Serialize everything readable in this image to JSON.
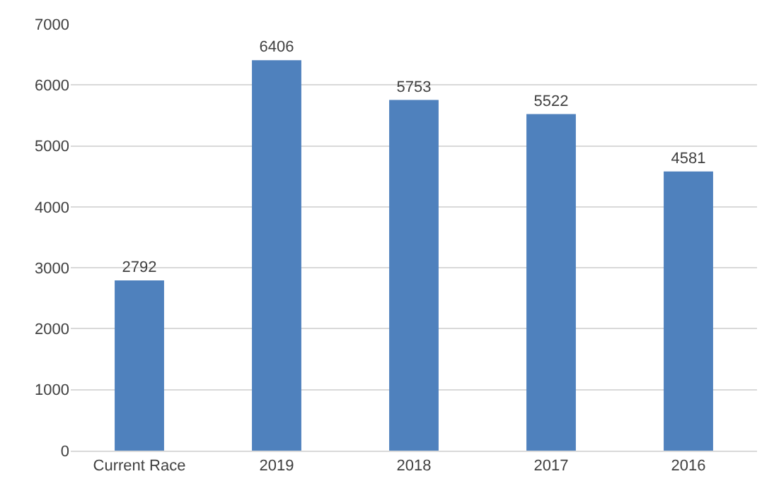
{
  "chart_data": {
    "type": "bar",
    "categories": [
      "Current Race",
      "2019",
      "2018",
      "2017",
      "2016"
    ],
    "values": [
      2792,
      6406,
      5753,
      5522,
      4581
    ],
    "color": "#4f81bd",
    "ylim": [
      0,
      7000
    ],
    "yticks": [
      0,
      1000,
      2000,
      3000,
      4000,
      5000,
      6000,
      7000
    ],
    "grid": "y",
    "data_labels": true,
    "legend": false
  }
}
